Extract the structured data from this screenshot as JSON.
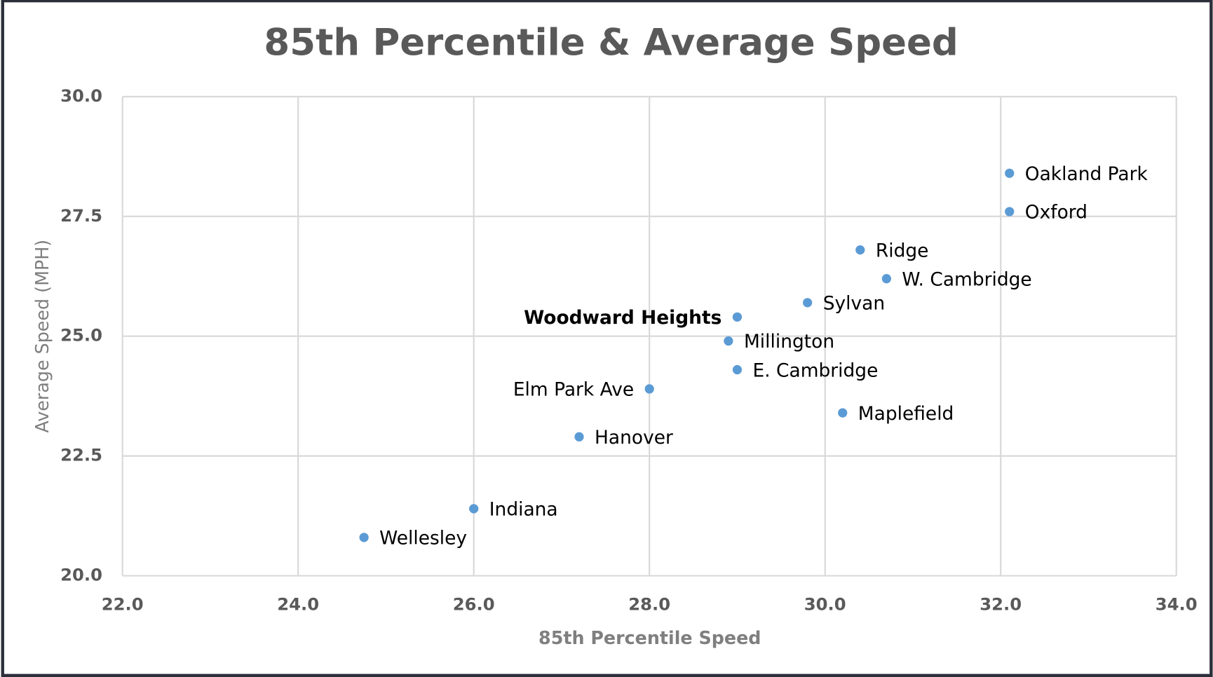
{
  "chart_data": {
    "type": "scatter",
    "title": "85th Percentile & Average Speed",
    "x_label": "85th Percentile Speed",
    "y_label": "Average Speed (MPH)",
    "series": [
      {
        "color": "#5b9bd5",
        "labels": [
          "Oakland Park",
          "Oxford",
          "Ridge",
          "W. Cambridge",
          "Sylvan",
          "Woodward Heights",
          "Millington",
          "E. Cambridge",
          "Elm Park Ave",
          "Maplefield",
          "Hanover",
          "Indiana",
          "Wellesley"
        ],
        "x": [
          32.1,
          32.1,
          30.4,
          30.7,
          29.8,
          29.0,
          28.9,
          29.0,
          28.0,
          30.2,
          27.2,
          26.0,
          24.75
        ],
        "values": [
          28.4,
          27.6,
          26.8,
          26.2,
          25.7,
          25.4,
          24.9,
          24.3,
          23.9,
          23.4,
          22.9,
          21.4,
          20.8
        ]
      }
    ],
    "xlim": [
      22,
      34
    ],
    "xticks": [
      {
        "value": 22,
        "label": "22.0"
      },
      {
        "value": 24,
        "label": "24.0"
      },
      {
        "value": 26,
        "label": "26.0"
      },
      {
        "value": 28,
        "label": "28.0"
      },
      {
        "value": 30,
        "label": "30.0"
      },
      {
        "value": 32,
        "label": "32.0"
      },
      {
        "value": 34,
        "label": "34.0"
      }
    ],
    "ylim": [
      20,
      30
    ],
    "yticks": [
      {
        "value": 20,
        "label": "20.0"
      },
      {
        "value": 22.5,
        "label": "22.5"
      },
      {
        "value": 25,
        "label": "25.0"
      },
      {
        "value": 27.5,
        "label": "27.5"
      },
      {
        "value": 30,
        "label": "30.0"
      }
    ],
    "grid": true
  }
}
